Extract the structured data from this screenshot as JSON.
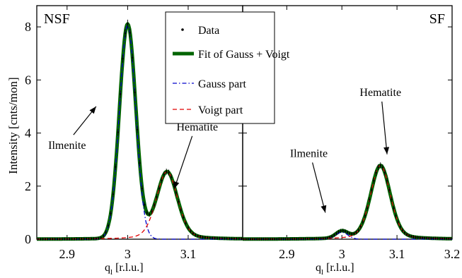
{
  "chart_data": {
    "type": "line",
    "ylabel": "Intensity [cnts/mon]",
    "ylim": [
      0,
      8.8
    ],
    "yticks": [
      "0",
      "2",
      "4",
      "6",
      "8"
    ],
    "legend": {
      "position": "top-center",
      "entries": [
        {
          "label": "Data",
          "color": "#000000",
          "style": "dot"
        },
        {
          "label": "Fit of Gauss + Voigt",
          "color": "#006400",
          "style": "thick-solid"
        },
        {
          "label": "Gauss part",
          "color": "#0000cc",
          "style": "dash-dot"
        },
        {
          "label": "Voigt part",
          "color": "#e00000",
          "style": "dashed"
        }
      ]
    },
    "panels": [
      {
        "id": "left",
        "title": "NSF",
        "xlabel": "q",
        "xlabel_sub": "l",
        "xlabel_unit": " [r.l.u.]",
        "xlim": [
          2.85,
          3.19
        ],
        "xticks": [
          "2.9",
          "3",
          "3.1"
        ],
        "components": {
          "gauss": {
            "center": 3.0,
            "sigma": 0.0135,
            "amplitude": 8.05
          },
          "voigt": {
            "center": 3.065,
            "sigma": 0.0175,
            "amplitude": 2.55
          }
        },
        "annotations": [
          {
            "text": "Ilmenite",
            "x": 2.9,
            "y": 3.4,
            "arrow_to": [
              2.948,
              5.0
            ]
          },
          {
            "text": "Hematite",
            "x": 3.115,
            "y": 4.1,
            "arrow_to": [
              3.077,
              1.9
            ]
          }
        ]
      },
      {
        "id": "right",
        "title": "SF",
        "xlabel": "q",
        "xlabel_sub": "l",
        "xlabel_unit": " [r.l.u.]",
        "xlim": [
          2.82,
          3.2
        ],
        "xticks": [
          "2.9",
          "3",
          "3.1",
          "3.2"
        ],
        "components": {
          "gauss": {
            "center": 3.0,
            "sigma": 0.011,
            "amplitude": 0.26
          },
          "voigt": {
            "center": 3.07,
            "sigma": 0.018,
            "amplitude": 2.78
          }
        },
        "annotations": [
          {
            "text": "Ilmenite",
            "x": 2.94,
            "y": 3.1,
            "arrow_to": [
              2.97,
              1.0
            ]
          },
          {
            "text": "Hematite",
            "x": 3.07,
            "y": 5.4,
            "arrow_to": [
              3.082,
              3.2
            ]
          }
        ]
      }
    ]
  }
}
